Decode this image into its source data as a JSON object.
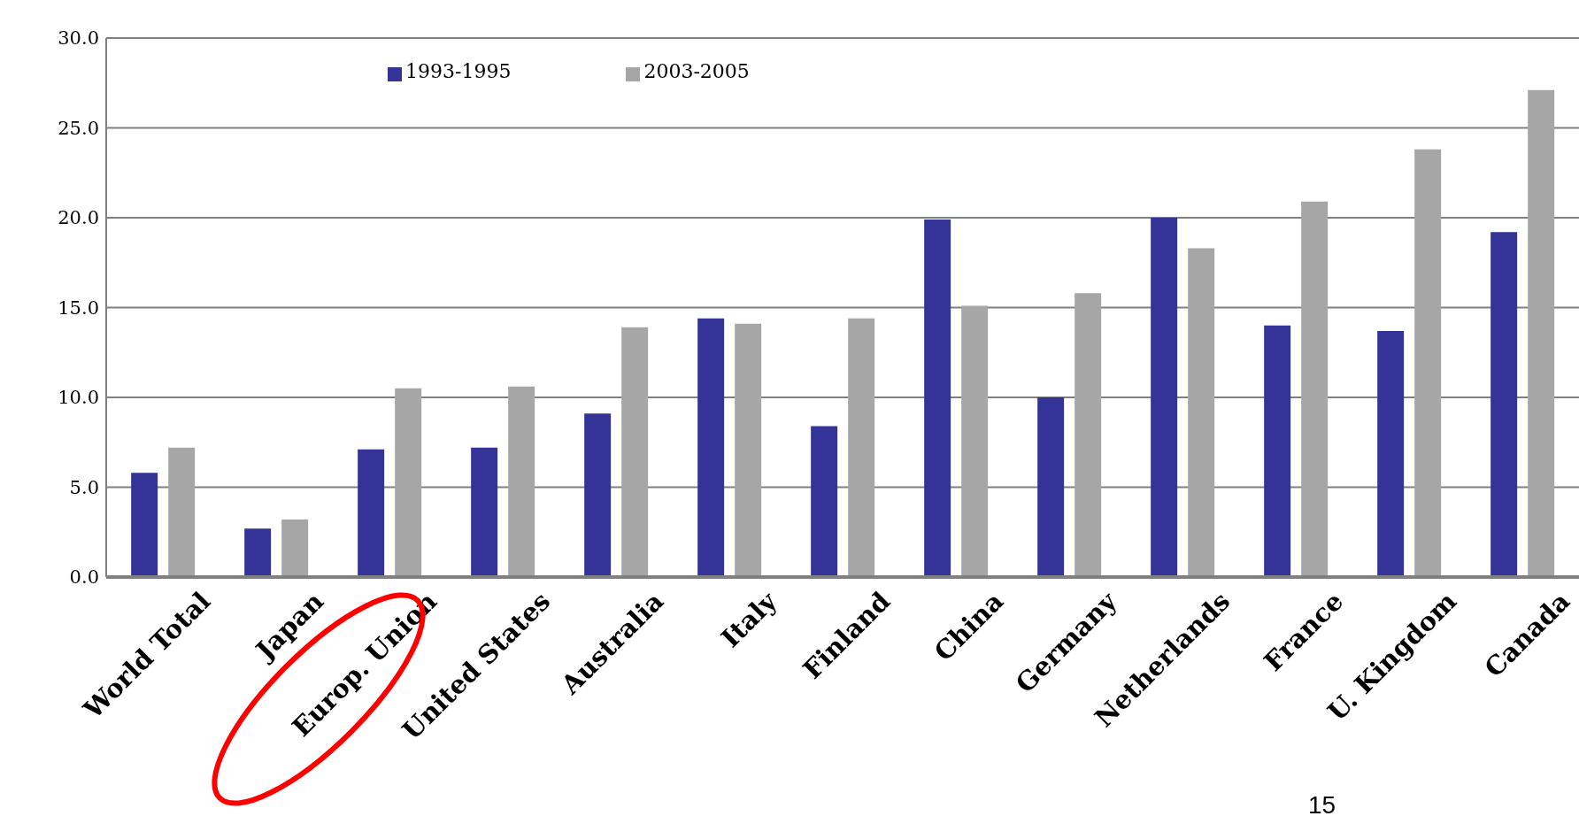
{
  "chart_data": {
    "type": "bar",
    "categories": [
      "World Total",
      "Japan",
      "Europ. Union",
      "United States",
      "Australia",
      "Italy",
      "Finland",
      "China",
      "Germany",
      "Netherlands",
      "France",
      "U. Kingdom",
      "Canada"
    ],
    "series": [
      {
        "name": "1993-1995",
        "color": "#343397",
        "values": [
          5.8,
          2.7,
          7.1,
          7.2,
          9.1,
          14.4,
          8.4,
          19.9,
          10.0,
          20.0,
          14.0,
          13.7,
          19.2
        ]
      },
      {
        "name": "2003-2005",
        "color": "#a6a6a6",
        "values": [
          7.2,
          3.2,
          10.5,
          10.6,
          13.9,
          14.1,
          14.4,
          15.1,
          15.8,
          18.3,
          20.9,
          23.8,
          27.1
        ]
      }
    ],
    "ylim": [
      0,
      30
    ],
    "yticks": [
      {
        "value": 0,
        "label": "0.0"
      },
      {
        "value": 5,
        "label": "5.0"
      },
      {
        "value": 10,
        "label": "10.0"
      },
      {
        "value": 15,
        "label": "15.0"
      },
      {
        "value": 20,
        "label": "20.0"
      },
      {
        "value": 25,
        "label": "25.0"
      },
      {
        "value": 30,
        "label": "30.0"
      }
    ],
    "grid": "y",
    "legend": "top",
    "annotations": [
      "15"
    ]
  }
}
